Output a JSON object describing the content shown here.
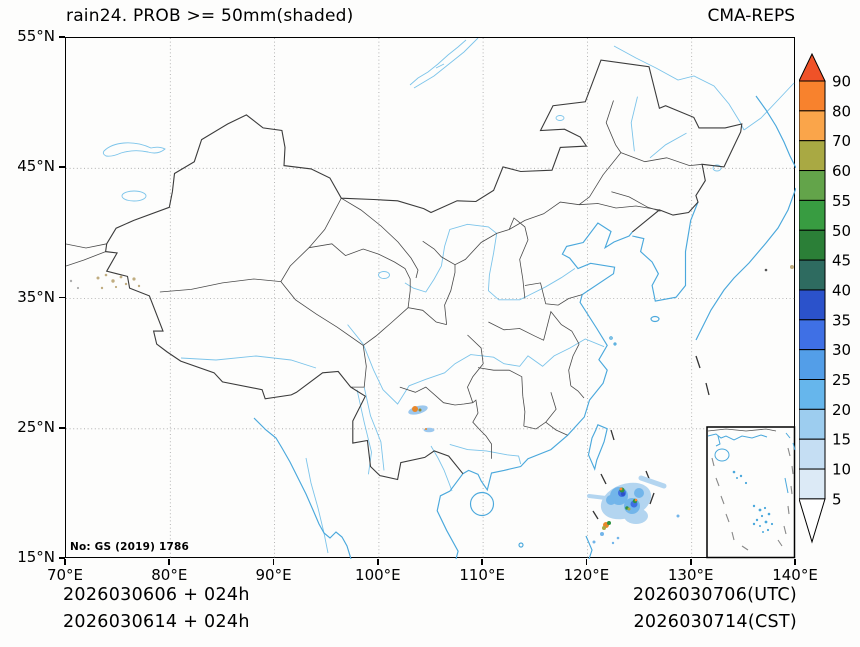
{
  "header": {
    "title": "rain24. PROB >= 50mm(shaded)",
    "model": "CMA-REPS"
  },
  "axes": {
    "x_ticks": [
      "70°E",
      "80°E",
      "90°E",
      "100°E",
      "110°E",
      "120°E",
      "130°E",
      "140°E"
    ],
    "y_ticks": [
      "55°N",
      "45°N",
      "35°N",
      "25°N",
      "15°N"
    ]
  },
  "map": {
    "note": "No: GS (2019) 1786"
  },
  "colorbar": {
    "tick_labels": [
      "90",
      "80",
      "70",
      "60",
      "55",
      "50",
      "45",
      "40",
      "35",
      "30",
      "25",
      "20",
      "15",
      "10",
      "5"
    ],
    "segment_colors_top_to_bottom": [
      "#F8822D",
      "#FAA54A",
      "#A9A943",
      "#63A44A",
      "#389C41",
      "#2B7F37",
      "#2E6B60",
      "#2B52CB",
      "#3F70E5",
      "#539EE8",
      "#66B6EC",
      "#9DCDEF",
      "#C5DEF3",
      "#DCEAF6"
    ],
    "arrow_top_color": "#EF5228",
    "arrow_bottom_color": "#FFFFFF"
  },
  "footer": {
    "left_line1": "2026030606 + 024h",
    "left_line2": "2026030614 + 024h",
    "right_line1": "2026030706(UTC)",
    "right_line2": "2026030714(CST)"
  },
  "chart_data": {
    "type": "map",
    "title": "rain24. PROB >= 50mm(shaded)",
    "model": "CMA-REPS",
    "extent": {
      "lon": [
        70,
        140
      ],
      "lat": [
        15,
        55
      ]
    },
    "grid_interval_deg": 10,
    "colorbar_levels": [
      5,
      10,
      15,
      20,
      25,
      30,
      35,
      40,
      45,
      50,
      55,
      60,
      70,
      80,
      90
    ],
    "shaded_regions": [
      {
        "location": "ocean east of Taiwan, ~122-124E 20-22N",
        "peak_band": "40-60 with small 70-90 specks"
      },
      {
        "location": "Yunnan/Guizhou border, ~104E 26N",
        "peak_band": "70-80 core in 15-25 patch"
      },
      {
        "location": "Pamir / far western border, ~74E 36N",
        "peak_band": "faint 5-15 speckles"
      },
      {
        "location": "small specks south of Taiwan, ~121-123E 18-19N",
        "peak_band": "60-80 specks"
      }
    ]
  }
}
